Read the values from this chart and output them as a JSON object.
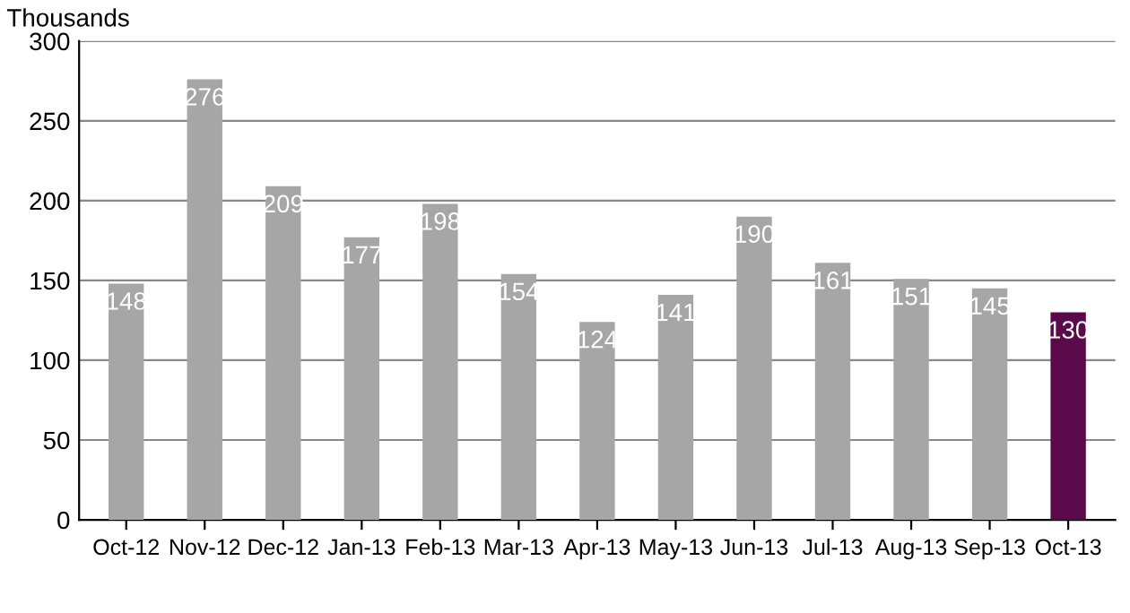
{
  "chart_data": {
    "type": "bar",
    "ylabel": "Thousands",
    "categories": [
      "Oct-12",
      "Nov-12",
      "Dec-12",
      "Jan-13",
      "Feb-13",
      "Mar-13",
      "Apr-13",
      "May-13",
      "Jun-13",
      "Jul-13",
      "Aug-13",
      "Sep-13",
      "Oct-13"
    ],
    "values": [
      148,
      276,
      209,
      177,
      198,
      154,
      124,
      141,
      190,
      161,
      151,
      145,
      130
    ],
    "colors": [
      "#a6a6a6",
      "#a6a6a6",
      "#a6a6a6",
      "#a6a6a6",
      "#a6a6a6",
      "#a6a6a6",
      "#a6a6a6",
      "#a6a6a6",
      "#a6a6a6",
      "#a6a6a6",
      "#a6a6a6",
      "#a6a6a6",
      "#5a0a4a"
    ],
    "ylim": [
      0,
      300
    ],
    "yticks": [
      0,
      50,
      100,
      150,
      200,
      250,
      300
    ],
    "grid": "y",
    "data_labels": true
  }
}
